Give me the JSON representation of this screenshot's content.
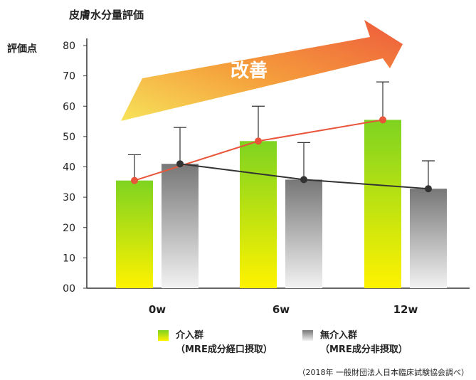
{
  "chart_data": {
    "type": "bar",
    "title": "皮膚水分量評価",
    "ylabel": "評価点",
    "categories": [
      "0w",
      "6w",
      "12w"
    ],
    "ylim": [
      0,
      80
    ],
    "yticks": [
      "00",
      "10",
      "20",
      "30",
      "40",
      "50",
      "60",
      "70",
      "80"
    ],
    "series": [
      {
        "name": "介入群",
        "sublabel": "（MRE成分経口摂取）",
        "values": [
          35.5,
          48.5,
          55.5
        ],
        "error_upper": [
          44,
          60,
          68
        ],
        "gradient": [
          "#7ed321",
          "#fff200"
        ],
        "line_color": "#e8553a"
      },
      {
        "name": "無介入群",
        "sublabel": "（MRE成分非摂取）",
        "values": [
          41,
          35.8,
          32.8
        ],
        "error_upper": [
          53,
          48,
          42
        ],
        "gradient": [
          "#777777",
          "#f2f2f2"
        ],
        "line_color": "#333333"
      }
    ],
    "annotation": {
      "text": "改善",
      "arrow_colors": [
        "#f7e35a",
        "#f5a03c",
        "#ee5a3c"
      ]
    },
    "grid": false,
    "legend_position": "bottom",
    "source": "（2018年 一般財団法人日本臨床試験協会調べ）"
  }
}
